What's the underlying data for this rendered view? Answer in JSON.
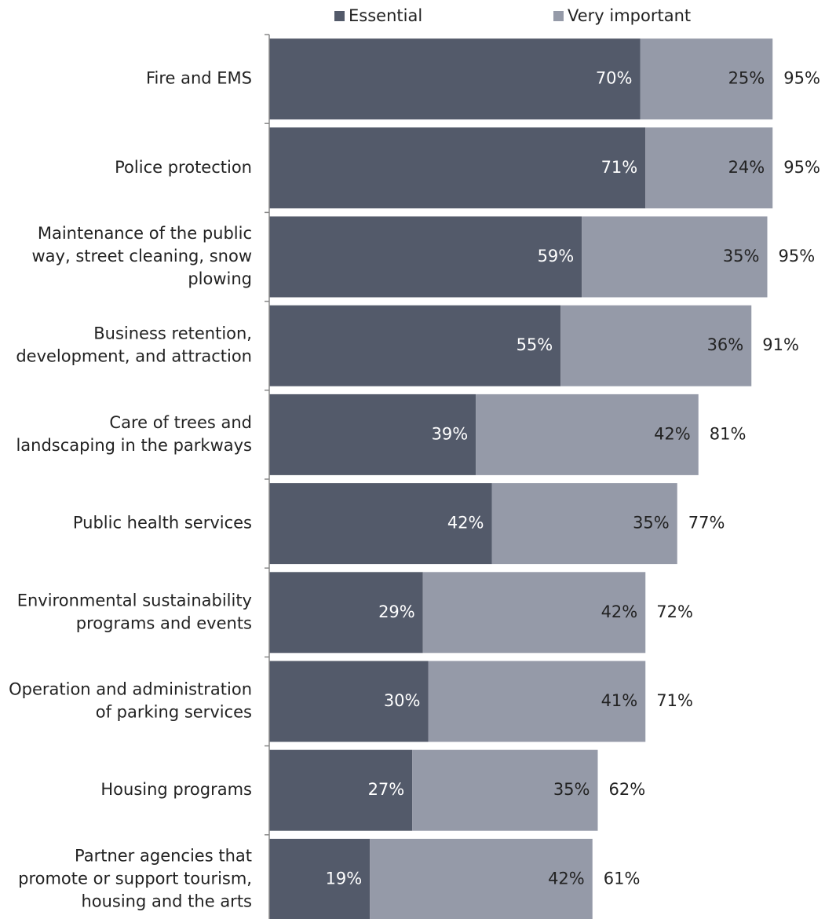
{
  "colors": {
    "essential": "#535a6a",
    "very_important": "#959aa8",
    "axis": "#888888",
    "label": "#222222",
    "inbar": "#ffffff",
    "inbar_light": "#222222"
  },
  "legend": {
    "essential": "Essential",
    "very_important": "Very important"
  },
  "chart_data": {
    "type": "bar",
    "orientation": "horizontal",
    "stacked": true,
    "title": "",
    "xlabel": "",
    "ylabel": "",
    "xlim": [
      0,
      100
    ],
    "legend_position": "top",
    "grid": false,
    "categories": [
      [
        "Fire and EMS"
      ],
      [
        "Police protection"
      ],
      [
        "Maintenance of the public",
        "way, street cleaning, snow",
        "plowing"
      ],
      [
        "Business retention,",
        "development, and attraction"
      ],
      [
        "Care of trees and",
        "landscaping in the parkways"
      ],
      [
        "Public health services"
      ],
      [
        "Environmental sustainability",
        "programs and events"
      ],
      [
        "Operation and administration",
        "of parking services"
      ],
      [
        "Housing programs"
      ],
      [
        "Partner agencies that",
        "promote or support tourism,",
        "housing and the arts"
      ]
    ],
    "series": [
      {
        "name": "Essential",
        "values": [
          70,
          71,
          59,
          55,
          39,
          42,
          29,
          30,
          27,
          19
        ]
      },
      {
        "name": "Very important",
        "values": [
          25,
          24,
          35,
          36,
          42,
          35,
          42,
          41,
          35,
          42
        ]
      }
    ],
    "totals": [
      95,
      95,
      95,
      91,
      81,
      77,
      72,
      71,
      62,
      61
    ]
  }
}
